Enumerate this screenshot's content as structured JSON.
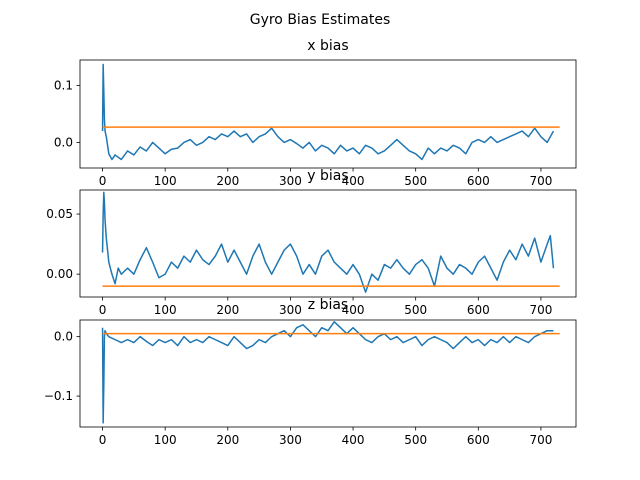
{
  "figure": {
    "suptitle": "Gyro Bias Estimates"
  },
  "chart_data": [
    {
      "type": "line",
      "title": "x bias",
      "xlim": [
        -36,
        756
      ],
      "ylim": [
        -0.045,
        0.145
      ],
      "xticks": [
        0,
        100,
        200,
        300,
        400,
        500,
        600,
        700
      ],
      "yticks": [
        0.0,
        0.1
      ],
      "ytick_labels": [
        "0.0",
        "0.1"
      ],
      "grid": false,
      "series": [
        {
          "color": "#1f77b4",
          "x": [
            0,
            1,
            2,
            3,
            4,
            6,
            8,
            10,
            15,
            20,
            30,
            40,
            50,
            60,
            70,
            80,
            90,
            100,
            110,
            120,
            130,
            140,
            150,
            160,
            170,
            180,
            190,
            200,
            210,
            220,
            230,
            240,
            250,
            260,
            270,
            280,
            290,
            300,
            310,
            320,
            330,
            340,
            350,
            360,
            370,
            380,
            390,
            400,
            410,
            420,
            430,
            440,
            450,
            460,
            470,
            480,
            490,
            500,
            510,
            520,
            530,
            540,
            550,
            560,
            570,
            580,
            590,
            600,
            610,
            620,
            630,
            640,
            650,
            660,
            670,
            680,
            690,
            700,
            710,
            720
          ],
          "y": [
            0.02,
            0.137,
            0.09,
            0.04,
            0.02,
            0.01,
            -0.005,
            -0.02,
            -0.03,
            -0.022,
            -0.03,
            -0.015,
            -0.022,
            -0.008,
            -0.015,
            0.0,
            -0.01,
            -0.02,
            -0.012,
            -0.01,
            0.0,
            0.005,
            -0.005,
            0.0,
            0.01,
            0.005,
            0.015,
            0.01,
            0.02,
            0.01,
            0.015,
            0.0,
            0.01,
            0.015,
            0.025,
            0.01,
            0.0,
            0.005,
            -0.002,
            -0.01,
            0.0,
            -0.015,
            -0.005,
            -0.01,
            -0.02,
            -0.005,
            -0.015,
            -0.01,
            -0.02,
            -0.005,
            -0.01,
            -0.02,
            -0.015,
            -0.005,
            0.005,
            -0.005,
            -0.015,
            -0.02,
            -0.03,
            -0.01,
            -0.02,
            -0.01,
            -0.015,
            -0.005,
            -0.01,
            -0.02,
            0.0,
            0.005,
            0.0,
            0.01,
            0.0,
            0.005,
            0.01,
            0.015,
            0.02,
            0.01,
            0.025,
            0.01,
            0.0,
            0.02
          ]
        },
        {
          "color": "#ff7f0e",
          "x": [
            0,
            730
          ],
          "y": [
            0.027,
            0.027
          ]
        }
      ]
    },
    {
      "type": "line",
      "title": "y bias",
      "xlim": [
        -36,
        756
      ],
      "ylim": [
        -0.019,
        0.07
      ],
      "xticks": [
        0,
        100,
        200,
        300,
        400,
        500,
        600,
        700
      ],
      "yticks": [
        0.0,
        0.05
      ],
      "ytick_labels": [
        "0.00",
        "0.05"
      ],
      "grid": false,
      "series": [
        {
          "color": "#1f77b4",
          "x": [
            0,
            1,
            2,
            3,
            4,
            6,
            8,
            10,
            15,
            20,
            25,
            30,
            40,
            50,
            60,
            70,
            80,
            90,
            100,
            110,
            120,
            130,
            140,
            150,
            160,
            170,
            180,
            190,
            200,
            210,
            220,
            230,
            240,
            250,
            260,
            270,
            280,
            290,
            300,
            310,
            320,
            330,
            340,
            350,
            360,
            370,
            380,
            390,
            400,
            410,
            420,
            430,
            440,
            450,
            460,
            470,
            480,
            490,
            500,
            510,
            520,
            530,
            540,
            550,
            560,
            570,
            580,
            590,
            600,
            610,
            620,
            630,
            640,
            650,
            660,
            670,
            680,
            690,
            700,
            710,
            715,
            720
          ],
          "y": [
            0.018,
            0.05,
            0.068,
            0.06,
            0.045,
            0.03,
            0.02,
            0.01,
            0.0,
            -0.008,
            0.005,
            0.0,
            0.005,
            0.0,
            0.012,
            0.022,
            0.01,
            -0.003,
            0.0,
            0.01,
            0.005,
            0.015,
            0.01,
            0.02,
            0.012,
            0.008,
            0.015,
            0.025,
            0.01,
            0.02,
            0.01,
            0.0,
            0.015,
            0.025,
            0.01,
            0.0,
            0.01,
            0.02,
            0.025,
            0.015,
            0.0,
            0.008,
            0.0,
            0.015,
            0.02,
            0.01,
            0.005,
            0.0,
            0.008,
            0.0,
            -0.015,
            0.0,
            -0.005,
            0.008,
            0.005,
            0.012,
            0.005,
            0.0,
            0.008,
            0.012,
            0.005,
            -0.01,
            0.015,
            0.005,
            0.0,
            0.008,
            0.005,
            0.0,
            0.01,
            0.015,
            0.005,
            -0.005,
            0.01,
            0.02,
            0.012,
            0.025,
            0.015,
            0.03,
            0.01,
            0.025,
            0.032,
            0.005
          ]
        },
        {
          "color": "#ff7f0e",
          "x": [
            0,
            730
          ],
          "y": [
            -0.01,
            -0.01
          ]
        }
      ]
    },
    {
      "type": "line",
      "title": "z bias",
      "xlim": [
        -36,
        756
      ],
      "ylim": [
        -0.152,
        0.028
      ],
      "xticks": [
        0,
        100,
        200,
        300,
        400,
        500,
        600,
        700
      ],
      "yticks": [
        -0.1,
        0.0
      ],
      "ytick_labels": [
        "−0.1",
        "0.0"
      ],
      "grid": false,
      "series": [
        {
          "color": "#1f77b4",
          "x": [
            0,
            1,
            2,
            3,
            4,
            6,
            10,
            20,
            30,
            40,
            50,
            60,
            70,
            80,
            90,
            100,
            110,
            120,
            130,
            140,
            150,
            160,
            170,
            180,
            190,
            200,
            210,
            220,
            230,
            240,
            250,
            260,
            270,
            280,
            290,
            300,
            310,
            320,
            330,
            340,
            350,
            360,
            370,
            380,
            390,
            400,
            410,
            420,
            430,
            440,
            450,
            460,
            470,
            480,
            490,
            500,
            510,
            520,
            530,
            540,
            550,
            560,
            570,
            580,
            590,
            600,
            610,
            620,
            630,
            640,
            650,
            660,
            670,
            680,
            690,
            700,
            710,
            720
          ],
          "y": [
            0.015,
            -0.145,
            -0.08,
            0.0,
            0.01,
            0.005,
            0.0,
            -0.005,
            -0.01,
            -0.005,
            -0.01,
            0.0,
            -0.008,
            -0.015,
            -0.005,
            -0.01,
            -0.005,
            -0.015,
            0.0,
            -0.01,
            -0.005,
            -0.01,
            0.0,
            -0.005,
            -0.01,
            -0.015,
            0.0,
            -0.01,
            -0.02,
            -0.015,
            -0.005,
            -0.01,
            0.0,
            0.005,
            0.01,
            0.0,
            0.015,
            0.02,
            0.01,
            0.0,
            0.015,
            0.01,
            0.025,
            0.015,
            0.005,
            0.015,
            0.005,
            -0.005,
            -0.01,
            0.0,
            0.005,
            -0.005,
            0.0,
            -0.01,
            -0.005,
            0.0,
            -0.015,
            -0.005,
            0.0,
            -0.005,
            -0.01,
            -0.02,
            -0.01,
            0.0,
            -0.01,
            -0.005,
            -0.015,
            -0.005,
            -0.01,
            0.0,
            -0.01,
            0.0,
            -0.005,
            -0.01,
            0.0,
            0.005,
            0.01,
            0.01
          ]
        },
        {
          "color": "#ff7f0e",
          "x": [
            0,
            730
          ],
          "y": [
            0.005,
            0.005
          ]
        }
      ]
    }
  ]
}
